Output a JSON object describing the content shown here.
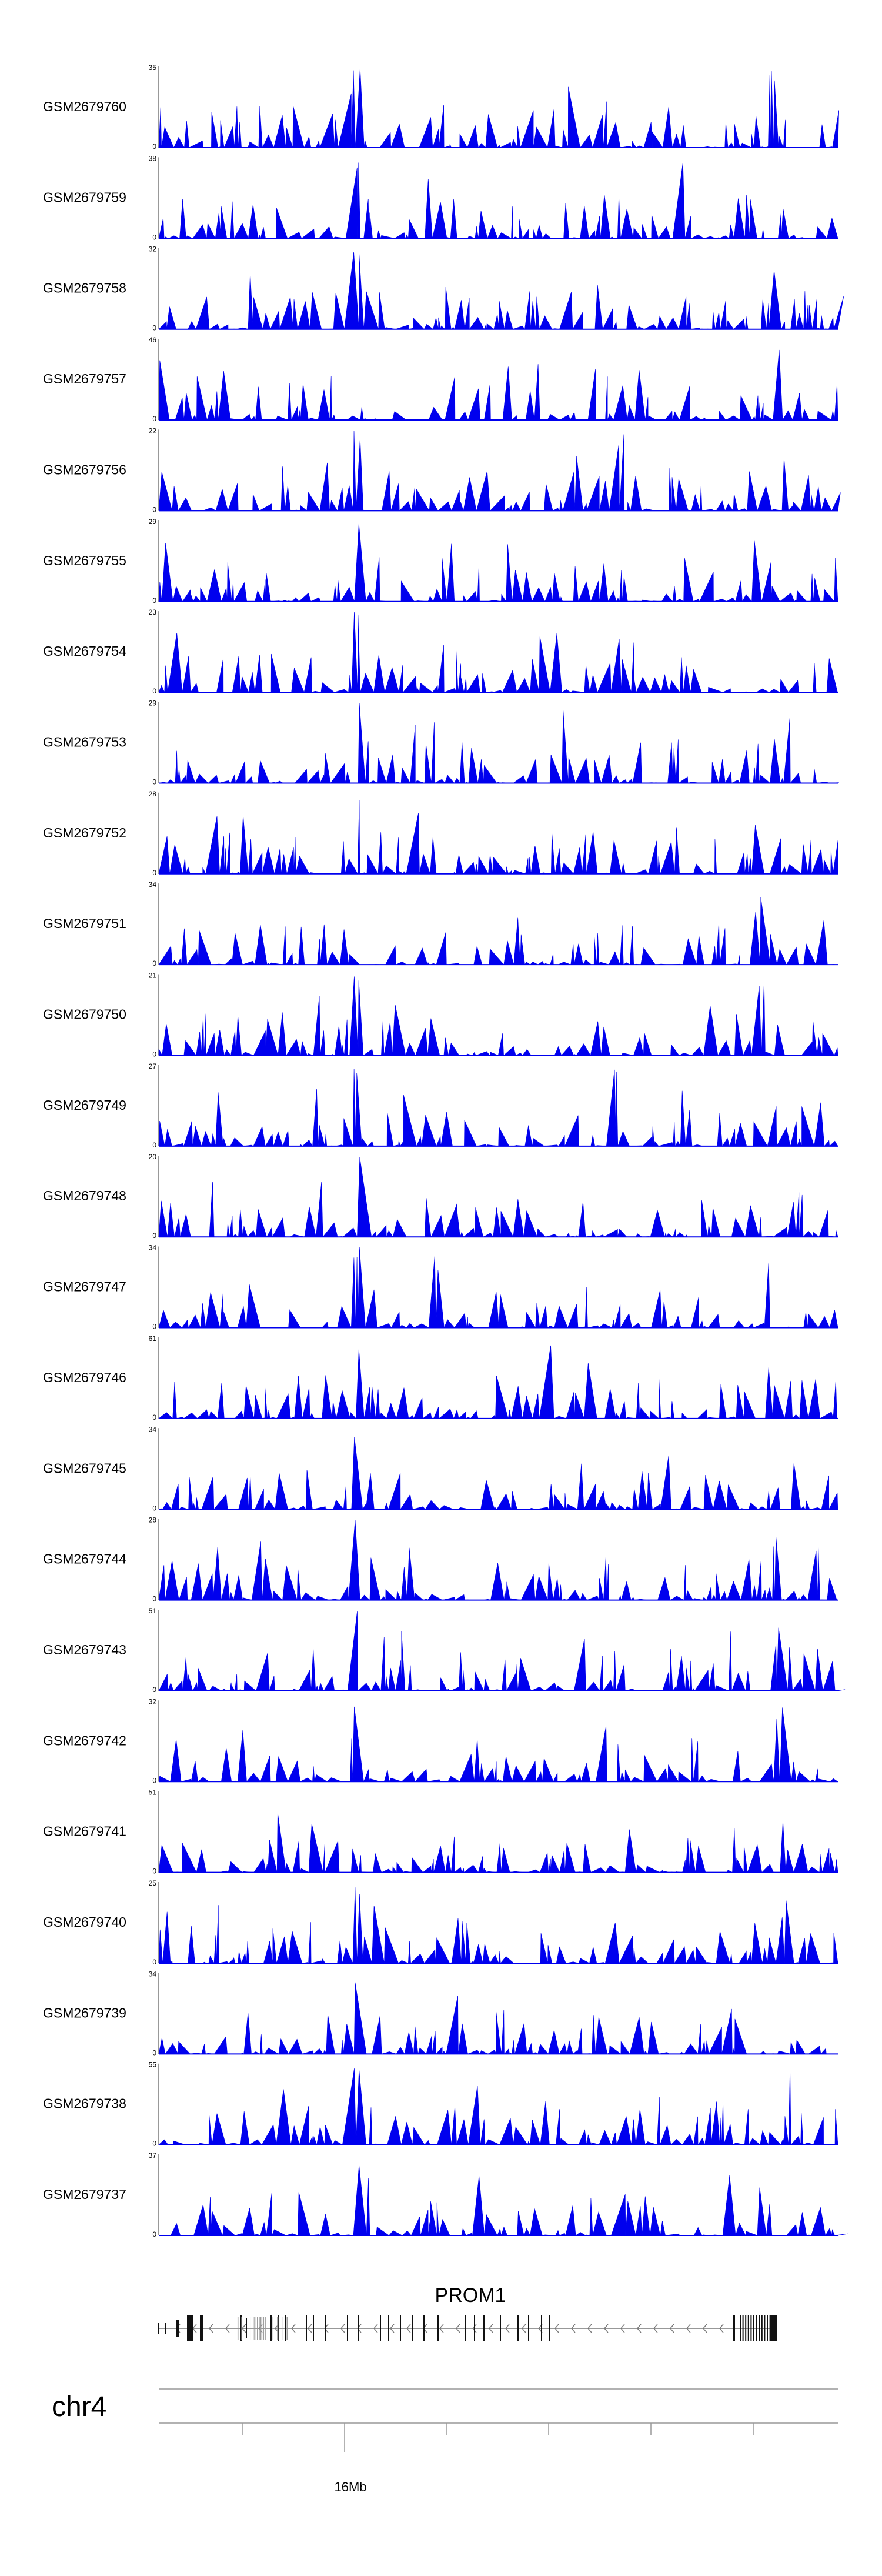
{
  "chart_data": {
    "type": "area",
    "title": "",
    "chromosome": "chr4",
    "gene": {
      "name": "PROM1",
      "strand": "-"
    },
    "xaxis": {
      "ticks": [
        {
          "label": "16Mb"
        }
      ]
    },
    "color": "#0000ee",
    "series": [
      {
        "name": "GSM2679760",
        "ymax": 35,
        "yticks": [
          "35",
          "0"
        ]
      },
      {
        "name": "GSM2679759",
        "ymax": 38,
        "yticks": [
          "38",
          "0"
        ]
      },
      {
        "name": "GSM2679758",
        "ymax": 32,
        "yticks": [
          "32",
          "0"
        ]
      },
      {
        "name": "GSM2679757",
        "ymax": 46,
        "yticks": [
          "46",
          "0"
        ]
      },
      {
        "name": "GSM2679756",
        "ymax": 22,
        "yticks": [
          "22",
          "0"
        ]
      },
      {
        "name": "GSM2679755",
        "ymax": 29,
        "yticks": [
          "29",
          "0"
        ]
      },
      {
        "name": "GSM2679754",
        "ymax": 23,
        "yticks": [
          "23",
          "0"
        ]
      },
      {
        "name": "GSM2679753",
        "ymax": 29,
        "yticks": [
          "29",
          "0"
        ]
      },
      {
        "name": "GSM2679752",
        "ymax": 28,
        "yticks": [
          "28",
          "0"
        ]
      },
      {
        "name": "GSM2679751",
        "ymax": 34,
        "yticks": [
          "34",
          "0"
        ]
      },
      {
        "name": "GSM2679750",
        "ymax": 21,
        "yticks": [
          "21",
          "0"
        ]
      },
      {
        "name": "GSM2679749",
        "ymax": 27,
        "yticks": [
          "27",
          "0"
        ]
      },
      {
        "name": "GSM2679748",
        "ymax": 20,
        "yticks": [
          "20",
          "0"
        ]
      },
      {
        "name": "GSM2679747",
        "ymax": 34,
        "yticks": [
          "34",
          "0"
        ]
      },
      {
        "name": "GSM2679746",
        "ymax": 61,
        "yticks": [
          "61",
          "0"
        ]
      },
      {
        "name": "GSM2679745",
        "ymax": 34,
        "yticks": [
          "34",
          "0"
        ]
      },
      {
        "name": "GSM2679744",
        "ymax": 28,
        "yticks": [
          "28",
          "0"
        ]
      },
      {
        "name": "GSM2679743",
        "ymax": 51,
        "yticks": [
          "51",
          "0"
        ]
      },
      {
        "name": "GSM2679742",
        "ymax": 32,
        "yticks": [
          "32",
          "0"
        ]
      },
      {
        "name": "GSM2679741",
        "ymax": 51,
        "yticks": [
          "51",
          "0"
        ]
      },
      {
        "name": "GSM2679740",
        "ymax": 25,
        "yticks": [
          "25",
          "0"
        ]
      },
      {
        "name": "GSM2679739",
        "ymax": 34,
        "yticks": [
          "34",
          "0"
        ]
      },
      {
        "name": "GSM2679738",
        "ymax": 55,
        "yticks": [
          "55",
          "0"
        ]
      },
      {
        "name": "GSM2679737",
        "ymax": 37,
        "yticks": [
          "37",
          "0"
        ]
      }
    ]
  }
}
